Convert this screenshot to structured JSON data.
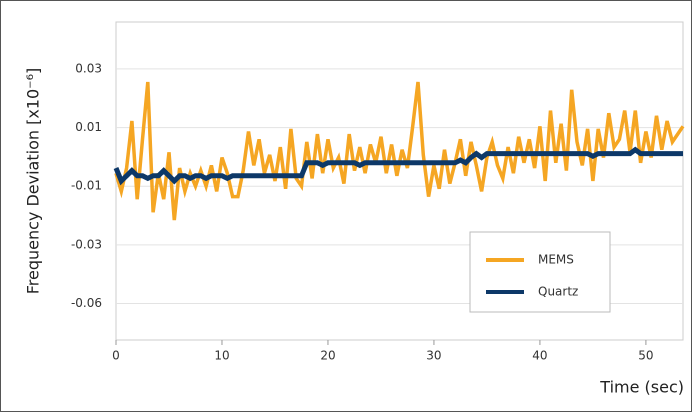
{
  "chart_data": {
    "type": "line",
    "ylabel": "Frequency Deviation [x10⁻⁶]",
    "xlabel": "Time (sec)",
    "x": [
      0,
      0.5,
      1,
      1.5,
      2,
      2.5,
      3,
      3.5,
      4,
      4.5,
      5,
      5.5,
      6,
      6.5,
      7,
      7.5,
      8,
      8.5,
      9,
      9.5,
      10,
      10.5,
      11,
      11.5,
      12,
      12.5,
      13,
      13.5,
      14,
      14.5,
      15,
      15.5,
      16,
      16.5,
      17,
      17.5,
      18,
      18.5,
      19,
      19.5,
      20,
      20.5,
      21,
      21.5,
      22,
      22.5,
      23,
      23.5,
      24,
      24.5,
      25,
      25.5,
      26,
      26.5,
      27,
      27.5,
      28,
      28.5,
      29,
      29.5,
      30,
      30.5,
      31,
      31.5,
      32,
      32.5,
      33,
      33.5,
      34,
      34.5,
      35,
      35.5,
      36,
      36.5,
      37,
      37.5,
      38,
      38.5,
      39,
      39.5,
      40,
      40.5,
      41,
      41.5,
      42,
      42.5,
      43,
      43.5,
      44,
      44.5,
      45,
      45.5,
      46,
      46.5,
      47,
      47.5,
      48,
      48.5,
      49,
      49.5,
      50,
      50.5,
      51,
      51.5,
      52,
      52.5,
      53,
      53.5
    ],
    "series": [
      {
        "name": "MEMS",
        "color": "#f5a623",
        "values": [
          -0.006,
          -0.013,
          -0.004,
          0.014,
          -0.016,
          0.007,
          0.029,
          -0.021,
          -0.006,
          -0.016,
          0.002,
          -0.024,
          -0.004,
          -0.013,
          -0.006,
          -0.011,
          -0.005,
          -0.011,
          -0.003,
          -0.013,
          0.0,
          -0.006,
          -0.015,
          -0.015,
          -0.005,
          0.01,
          -0.003,
          0.007,
          -0.006,
          0.001,
          -0.009,
          0.004,
          -0.012,
          0.011,
          -0.008,
          -0.011,
          0.006,
          -0.008,
          0.009,
          -0.006,
          0.007,
          -0.004,
          0.0,
          -0.01,
          0.009,
          -0.005,
          0.004,
          -0.006,
          0.005,
          -0.002,
          0.008,
          -0.006,
          0.005,
          -0.007,
          0.003,
          -0.004,
          0.012,
          0.029,
          0.001,
          -0.015,
          -0.003,
          -0.012,
          0.003,
          -0.01,
          -0.002,
          0.007,
          -0.007,
          0.006,
          -0.003,
          -0.013,
          0.0,
          0.006,
          -0.003,
          -0.008,
          0.004,
          -0.006,
          0.008,
          -0.002,
          0.007,
          -0.004,
          0.012,
          -0.009,
          0.018,
          -0.002,
          0.013,
          -0.005,
          0.026,
          0.006,
          -0.003,
          0.011,
          -0.009,
          0.011,
          0.0,
          0.017,
          0.004,
          0.007,
          0.018,
          0.002,
          0.018,
          -0.002,
          0.01,
          0.0,
          0.016,
          0.003,
          0.014,
          0.006,
          0.009,
          0.012
        ]
      },
      {
        "name": "Quartz",
        "color": "#0d3868",
        "values": [
          -0.004,
          -0.009,
          -0.007,
          -0.005,
          -0.007,
          -0.007,
          -0.008,
          -0.007,
          -0.007,
          -0.005,
          -0.007,
          -0.009,
          -0.007,
          -0.007,
          -0.008,
          -0.007,
          -0.007,
          -0.008,
          -0.007,
          -0.007,
          -0.007,
          -0.008,
          -0.007,
          -0.007,
          -0.007,
          -0.007,
          -0.007,
          -0.007,
          -0.007,
          -0.007,
          -0.007,
          -0.007,
          -0.007,
          -0.007,
          -0.007,
          -0.007,
          -0.002,
          -0.002,
          -0.002,
          -0.003,
          -0.002,
          -0.002,
          -0.002,
          -0.002,
          -0.002,
          -0.002,
          -0.003,
          -0.002,
          -0.002,
          -0.002,
          -0.002,
          -0.002,
          -0.002,
          -0.002,
          -0.002,
          -0.002,
          -0.002,
          -0.002,
          -0.002,
          -0.002,
          -0.002,
          -0.002,
          -0.002,
          -0.002,
          -0.002,
          -0.001,
          -0.002,
          0.0,
          0.0015,
          0.0,
          0.0015,
          0.0015,
          0.0015,
          0.0015,
          0.0015,
          0.0015,
          0.0015,
          0.0015,
          0.0015,
          0.0015,
          0.0015,
          0.0015,
          0.0015,
          0.0015,
          0.0015,
          0.0015,
          0.0015,
          0.0015,
          0.0015,
          0.0015,
          0.0005,
          0.0015,
          0.0015,
          0.0015,
          0.0015,
          0.0015,
          0.0015,
          0.0015,
          0.003,
          0.0015,
          0.0015,
          0.0015,
          0.0015,
          0.0015,
          0.0015,
          0.0015,
          0.0015,
          0.0015
        ]
      }
    ],
    "xlim": [
      0,
      53.5
    ],
    "xticks": [
      0,
      10,
      20,
      30,
      40,
      50
    ],
    "ylim": [
      -0.07,
      0.052
    ],
    "yticks": [
      {
        "value": 0.034,
        "label": "0.03"
      },
      {
        "value": 0.0115,
        "label": "0.01"
      },
      {
        "value": -0.011,
        "label": "-0.01"
      },
      {
        "value": -0.0335,
        "label": "-0.03"
      },
      {
        "value": -0.056,
        "label": "-0.06"
      }
    ],
    "grid": true,
    "legend": "lower right"
  }
}
